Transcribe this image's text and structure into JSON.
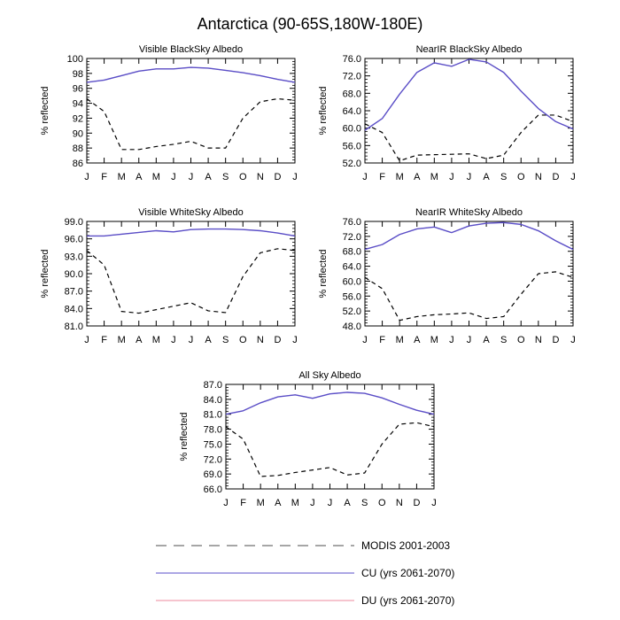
{
  "figure_title": "Antarctica (90-65S,180W-180E)",
  "colors": {
    "modis": "#000000",
    "cu": "#5a4fc8",
    "du": "#f0a0b0",
    "axis": "#000000"
  },
  "legend": {
    "modis": "MODIS 2001-2003",
    "cu": "CU (yrs 2061-2070)",
    "du": "DU (yrs 2061-2070)"
  },
  "chart_data": [
    {
      "type": "line",
      "title": "Visible BlackSky Albedo",
      "ylabel": "% reflected",
      "categories": [
        "J",
        "F",
        "M",
        "A",
        "M",
        "J",
        "J",
        "A",
        "S",
        "O",
        "N",
        "D",
        "J"
      ],
      "ylim": [
        86,
        100
      ],
      "yticks": [
        86,
        88,
        90,
        92,
        94,
        96,
        98,
        100
      ],
      "ytick_labels": [
        "86",
        "88",
        "90",
        "92",
        "94",
        "96",
        "98",
        "100"
      ],
      "series": [
        {
          "name": "MODIS 2001-2003",
          "values": [
            94.6,
            92.9,
            87.8,
            87.8,
            88.2,
            88.5,
            88.9,
            88.0,
            88.0,
            92.0,
            94.2,
            94.6,
            94.4
          ]
        },
        {
          "name": "CU (yrs 2061-2070)",
          "values": [
            96.8,
            97.1,
            97.7,
            98.3,
            98.6,
            98.6,
            98.8,
            98.7,
            98.4,
            98.1,
            97.7,
            97.2,
            96.8
          ]
        },
        {
          "name": "DU (yrs 2061-2070)",
          "values": [
            96.8,
            97.1,
            97.7,
            98.3,
            98.6,
            98.6,
            98.8,
            98.7,
            98.4,
            98.1,
            97.7,
            97.2,
            96.8
          ]
        }
      ]
    },
    {
      "type": "line",
      "title": "NearIR BlackSky Albedo",
      "ylabel": "% reflected",
      "categories": [
        "J",
        "F",
        "M",
        "A",
        "M",
        "J",
        "J",
        "A",
        "S",
        "O",
        "N",
        "D",
        "J"
      ],
      "ylim": [
        52,
        76
      ],
      "yticks": [
        52,
        56,
        60,
        64,
        68,
        72,
        76
      ],
      "ytick_labels": [
        "52.0",
        "56.0",
        "60.0",
        "64.0",
        "68.0",
        "72.0",
        "76.0"
      ],
      "series": [
        {
          "name": "MODIS 2001-2003",
          "values": [
            61.0,
            59.0,
            52.5,
            53.8,
            53.9,
            54.0,
            54.1,
            53.0,
            53.8,
            59.0,
            63.0,
            63.0,
            61.5
          ]
        },
        {
          "name": "CU (yrs 2061-2070)",
          "values": [
            59.5,
            62.2,
            67.8,
            72.8,
            75.0,
            74.2,
            75.8,
            75.2,
            72.8,
            68.5,
            64.5,
            61.5,
            59.8
          ]
        },
        {
          "name": "DU (yrs 2061-2070)",
          "values": [
            59.5,
            62.2,
            67.8,
            72.8,
            75.0,
            74.2,
            75.8,
            75.2,
            72.8,
            68.5,
            64.5,
            61.5,
            59.8
          ]
        }
      ]
    },
    {
      "type": "line",
      "title": "Visible WhiteSky Albedo",
      "ylabel": "% reflected",
      "categories": [
        "J",
        "F",
        "M",
        "A",
        "M",
        "J",
        "J",
        "A",
        "S",
        "O",
        "N",
        "D",
        "J"
      ],
      "ylim": [
        81,
        99
      ],
      "yticks": [
        81,
        84,
        87,
        90,
        93,
        96,
        99
      ],
      "ytick_labels": [
        "81.0",
        "84.0",
        "87.0",
        "90.0",
        "93.0",
        "96.0",
        "99.0"
      ],
      "series": [
        {
          "name": "MODIS 2001-2003",
          "values": [
            94.0,
            91.5,
            83.5,
            83.2,
            83.8,
            84.4,
            85.0,
            83.6,
            83.3,
            89.5,
            93.6,
            94.3,
            94.0
          ]
        },
        {
          "name": "CU (yrs 2061-2070)",
          "values": [
            96.5,
            96.5,
            96.8,
            97.1,
            97.4,
            97.2,
            97.6,
            97.7,
            97.7,
            97.6,
            97.4,
            97.0,
            96.5
          ]
        },
        {
          "name": "DU (yrs 2061-2070)",
          "values": [
            96.5,
            96.5,
            96.8,
            97.1,
            97.4,
            97.2,
            97.6,
            97.7,
            97.7,
            97.6,
            97.4,
            97.0,
            96.5
          ]
        }
      ]
    },
    {
      "type": "line",
      "title": "NearIR WhiteSky Albedo",
      "ylabel": "% reflected",
      "categories": [
        "J",
        "F",
        "M",
        "A",
        "M",
        "J",
        "J",
        "A",
        "S",
        "O",
        "N",
        "D",
        "J"
      ],
      "ylim": [
        48,
        76
      ],
      "yticks": [
        48,
        52,
        56,
        60,
        64,
        68,
        72,
        76
      ],
      "ytick_labels": [
        "48.0",
        "52.0",
        "56.0",
        "60.0",
        "64.0",
        "68.0",
        "72.0",
        "76.0"
      ],
      "series": [
        {
          "name": "MODIS 2001-2003",
          "values": [
            61.0,
            58.0,
            49.5,
            50.5,
            51.0,
            51.2,
            51.5,
            50.0,
            50.5,
            56.5,
            62.0,
            62.5,
            61.0
          ]
        },
        {
          "name": "CU (yrs 2061-2070)",
          "values": [
            68.5,
            69.8,
            72.5,
            74.0,
            74.5,
            73.0,
            74.8,
            75.5,
            75.7,
            75.2,
            73.5,
            70.8,
            68.5
          ]
        },
        {
          "name": "DU (yrs 2061-2070)",
          "values": [
            68.5,
            69.8,
            72.5,
            74.0,
            74.5,
            73.0,
            74.8,
            75.5,
            75.7,
            75.2,
            73.5,
            70.8,
            68.5
          ]
        }
      ]
    },
    {
      "type": "line",
      "title": "All Sky Albedo",
      "ylabel": "% reflected",
      "categories": [
        "J",
        "F",
        "M",
        "A",
        "M",
        "J",
        "J",
        "A",
        "S",
        "O",
        "N",
        "D",
        "J"
      ],
      "ylim": [
        66,
        87
      ],
      "yticks": [
        66,
        69,
        72,
        75,
        78,
        81,
        84,
        87
      ],
      "ytick_labels": [
        "66.0",
        "69.0",
        "72.0",
        "75.0",
        "78.0",
        "81.0",
        "84.0",
        "87.0"
      ],
      "series": [
        {
          "name": "MODIS 2001-2003",
          "values": [
            78.5,
            76.0,
            68.5,
            68.7,
            69.3,
            69.8,
            70.3,
            68.8,
            69.2,
            75.0,
            79.0,
            79.3,
            78.5
          ]
        },
        {
          "name": "CU (yrs 2061-2070)",
          "values": [
            81.0,
            81.7,
            83.3,
            84.5,
            84.9,
            84.2,
            85.1,
            85.4,
            85.2,
            84.3,
            83.0,
            81.8,
            81.0
          ]
        },
        {
          "name": "DU (yrs 2061-2070)",
          "values": [
            81.0,
            81.7,
            83.3,
            84.5,
            84.9,
            84.2,
            85.1,
            85.4,
            85.2,
            84.3,
            83.0,
            81.8,
            81.0
          ]
        }
      ]
    }
  ]
}
